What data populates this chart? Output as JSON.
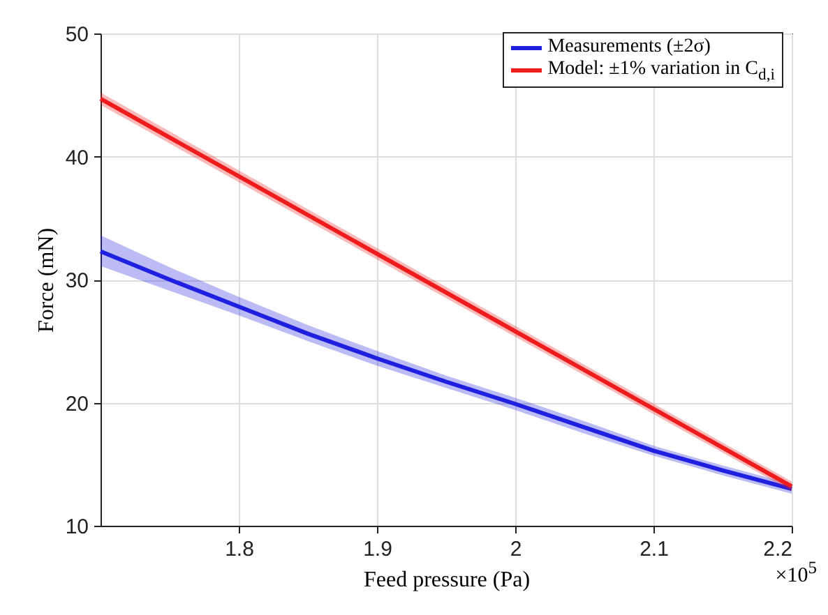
{
  "chart_data": {
    "type": "line",
    "xlabel": "Feed pressure (Pa)",
    "ylabel": "Force (mN)",
    "annotations": [
      "×10$^{5}$"
    ],
    "xlim": [
      1.7,
      2.2
    ],
    "xticks": [
      1.8,
      1.9,
      2,
      2.1,
      2.2
    ],
    "ylim": [
      10,
      50
    ],
    "yticks": [
      10,
      20,
      30,
      40,
      50
    ],
    "grid": true,
    "legend": "top right",
    "series": [
      {
        "name": "Measurements (±2σ)",
        "color": "#1f1fe0",
        "x": [
          1.7,
          1.75,
          1.8,
          1.85,
          1.9,
          1.95,
          2.0,
          2.05,
          2.1,
          2.15,
          2.2
        ],
        "values": [
          32.3,
          30.0,
          27.8,
          25.6,
          23.6,
          21.7,
          19.9,
          18.0,
          16.1,
          14.5,
          13.0
        ],
        "lower": [
          31.1,
          29.1,
          27.1,
          25.0,
          23.0,
          21.2,
          19.4,
          17.5,
          15.7,
          14.1,
          12.6
        ],
        "upper": [
          33.6,
          31.0,
          28.6,
          26.3,
          24.2,
          22.2,
          20.4,
          18.5,
          16.5,
          14.9,
          13.4
        ]
      },
      {
        "name": "Model: ±1% variation in C$_{d,i}$",
        "color": "#ee1c1c",
        "x": [
          1.7,
          2.2
        ],
        "values": [
          44.7,
          13.2
        ],
        "lower": [
          44.2,
          12.8
        ],
        "upper": [
          45.2,
          13.6
        ]
      }
    ]
  }
}
